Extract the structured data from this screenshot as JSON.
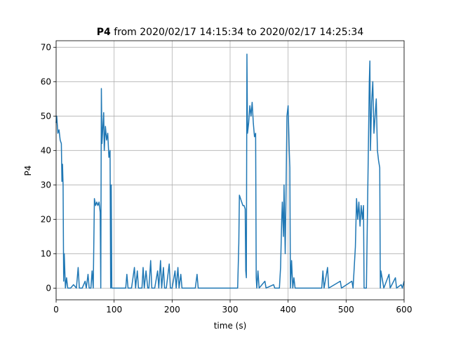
{
  "chart_data": {
    "type": "line",
    "title": {
      "bold": "P4",
      "text": "from 2020/02/17 14:15:34 to 2020/02/17 14:25:34"
    },
    "x_label": "time (s)",
    "y_label": "P4",
    "color": "#1f77b4",
    "grid": true,
    "xlim": [
      0,
      600
    ],
    "xticks": [
      0,
      100,
      200,
      300,
      400,
      500,
      600
    ],
    "ylim": [
      -3.4,
      71.9
    ],
    "yticks": [
      0,
      10,
      20,
      30,
      40,
      50,
      60,
      70
    ],
    "x": [
      0,
      1,
      3,
      5,
      7,
      9,
      10,
      11,
      12,
      13,
      14,
      15,
      16,
      18,
      20,
      25,
      30,
      35,
      38,
      40,
      45,
      50,
      52,
      55,
      57,
      60,
      62,
      64,
      66,
      68,
      70,
      72,
      74,
      76,
      77,
      78,
      79,
      80,
      82,
      83,
      85,
      87,
      89,
      91,
      93,
      94,
      95,
      96,
      100,
      110,
      120,
      122,
      124,
      130,
      135,
      137,
      140,
      142,
      148,
      150,
      152,
      155,
      158,
      160,
      163,
      165,
      170,
      175,
      177,
      180,
      182,
      185,
      187,
      190,
      195,
      197,
      200,
      205,
      207,
      210,
      212,
      215,
      217,
      220,
      240,
      243,
      245,
      250,
      300,
      313,
      315,
      316,
      318,
      320,
      322,
      324,
      326,
      327,
      328,
      329,
      330,
      332,
      334,
      336,
      338,
      340,
      342,
      344,
      345,
      346,
      348,
      350,
      360,
      362,
      375,
      377,
      385,
      387,
      389,
      390,
      392,
      393,
      395,
      396,
      398,
      400,
      402,
      403,
      404,
      406,
      408,
      410,
      412,
      458,
      460,
      462,
      468,
      470,
      490,
      492,
      510,
      512,
      516,
      518,
      520,
      522,
      524,
      526,
      528,
      530,
      531,
      535,
      540,
      541,
      542,
      544,
      546,
      548,
      550,
      552,
      554,
      556,
      558,
      559,
      560,
      562,
      565,
      574,
      576,
      585,
      587,
      595,
      597,
      600
    ],
    "values": [
      48,
      50,
      45,
      46,
      43,
      42,
      31,
      36,
      30,
      2,
      10,
      5,
      0,
      3,
      0,
      0,
      1,
      0,
      6,
      0,
      0,
      2,
      0,
      4,
      0,
      0,
      5,
      0,
      26,
      24,
      25,
      24,
      25,
      22,
      0,
      58,
      42,
      45,
      51,
      40,
      47,
      43,
      45,
      38,
      40,
      0,
      30,
      0,
      0,
      0,
      0,
      4,
      0,
      0,
      6,
      0,
      5,
      0,
      0,
      6,
      0,
      5,
      0,
      0,
      8,
      0,
      0,
      5,
      0,
      8,
      0,
      6,
      0,
      0,
      7,
      0,
      0,
      5,
      0,
      6,
      0,
      4,
      0,
      0,
      0,
      4,
      0,
      0,
      0,
      0,
      13,
      27,
      26,
      25,
      24,
      24,
      23,
      5,
      3,
      68,
      45,
      48,
      53,
      50,
      54,
      48,
      44,
      45,
      3,
      0,
      5,
      0,
      2,
      0,
      1,
      0,
      0,
      6,
      20,
      25,
      15,
      30,
      10,
      22,
      50,
      53,
      40,
      35,
      0,
      8,
      0,
      3,
      0,
      0,
      5,
      0,
      6,
      0,
      2,
      0,
      2,
      0,
      12,
      26,
      20,
      25,
      18,
      24,
      20,
      24,
      0,
      0,
      60,
      66,
      40,
      54,
      60,
      45,
      50,
      55,
      40,
      37,
      35,
      0,
      5,
      3,
      0,
      4,
      0,
      3,
      0,
      1,
      0,
      2
    ]
  }
}
